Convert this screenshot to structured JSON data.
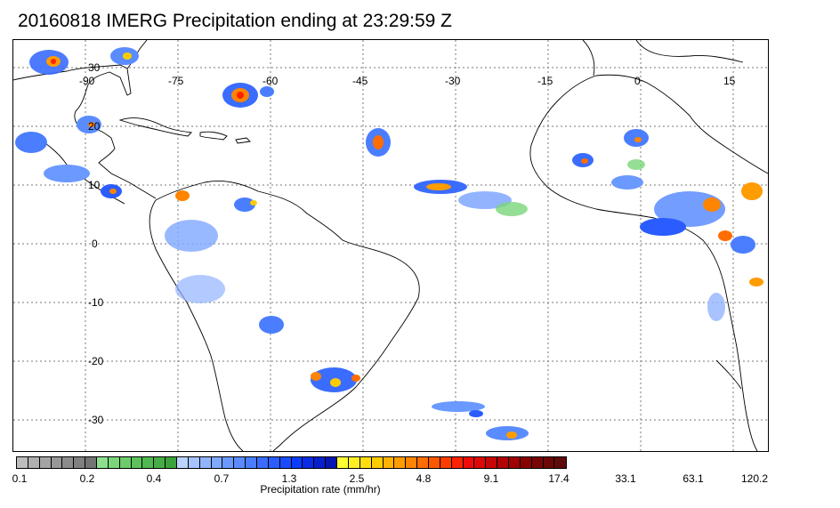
{
  "title": "20160818 IMERG Precipitation ending at 23:29:59 Z",
  "map": {
    "lon_labels": [
      "-90",
      "-75",
      "-60",
      "-45",
      "-30",
      "-15",
      "0",
      "15"
    ],
    "lat_labels": [
      "30",
      "20",
      "10",
      "0",
      "-10",
      "-20",
      "-30"
    ]
  },
  "colorbar": {
    "label": "Precipitation rate (mm/hr)",
    "ticks": [
      "0.1",
      "0.2",
      "0.4",
      "0.7",
      "1.3",
      "2.5",
      "4.8",
      "9.1",
      "17.4",
      "33.1",
      "63.1",
      "120.2"
    ],
    "colors": [
      "#bdbdbd",
      "#b0b0b0",
      "#a4a4a4",
      "#989898",
      "#8c8c8c",
      "#808080",
      "#747474",
      "#8ee08e",
      "#7bd67b",
      "#6ccc6c",
      "#5cc25c",
      "#4fb84f",
      "#46ad46",
      "#3ca33c",
      "#bcd2ff",
      "#a7c3ff",
      "#92b4ff",
      "#7fa8ff",
      "#6a99ff",
      "#5a8cff",
      "#4a7eff",
      "#3a6cff",
      "#2a5cff",
      "#1a4cff",
      "#0c3cff",
      "#0a2ce6",
      "#0820cc",
      "#0616b3",
      "#ffff33",
      "#ffee22",
      "#ffdd11",
      "#ffcc00",
      "#ffb300",
      "#ff9c00",
      "#ff8400",
      "#ff6d00",
      "#ff5600",
      "#ff3c00",
      "#ff2200",
      "#f00a0a",
      "#dd0808",
      "#c80606",
      "#b30404",
      "#9e0202",
      "#880000",
      "#7a0505",
      "#6c0808",
      "#5e0b0b"
    ]
  }
}
